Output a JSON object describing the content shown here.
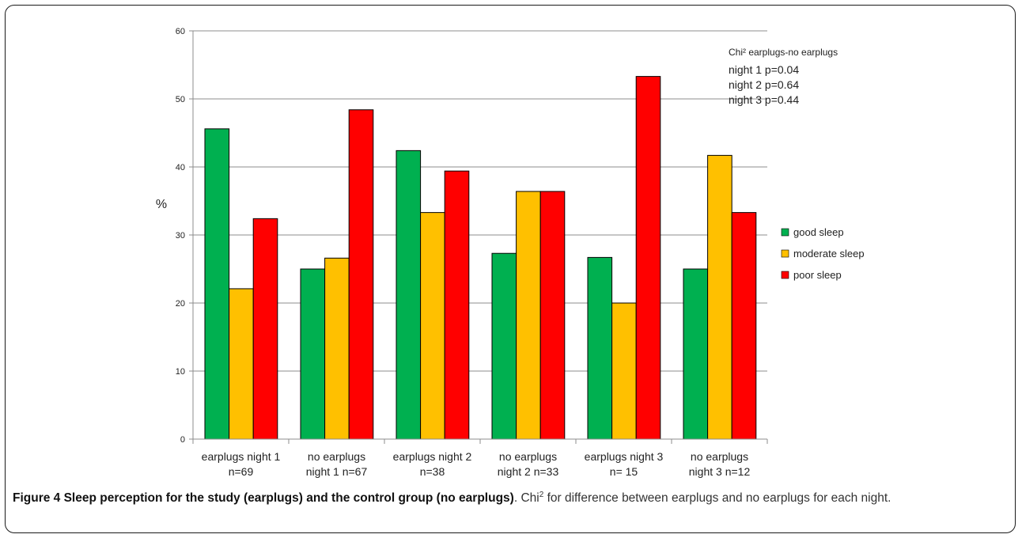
{
  "chart_data": {
    "type": "bar",
    "categories": [
      [
        "earplugs night 1",
        "n=69"
      ],
      [
        "no earplugs",
        "night 1 n=67"
      ],
      [
        "earplugs night 2",
        "n=38"
      ],
      [
        "no earplugs",
        "night 2 n=33"
      ],
      [
        "earplugs night 3",
        "n= 15"
      ],
      [
        "no earplugs",
        "night 3 n=12"
      ]
    ],
    "series": [
      {
        "name": "good sleep",
        "color": "#00b050",
        "values": [
          45.6,
          25.0,
          42.4,
          27.3,
          26.7,
          25.0
        ]
      },
      {
        "name": "moderate sleep",
        "color": "#ffc000",
        "values": [
          22.1,
          26.6,
          33.3,
          36.4,
          20.0,
          41.7
        ]
      },
      {
        "name": "poor sleep",
        "color": "#ff0000",
        "values": [
          32.4,
          48.4,
          39.4,
          36.4,
          53.3,
          33.3
        ]
      }
    ],
    "ylabel": "%",
    "ylim": [
      0,
      60
    ],
    "yticks": [
      0,
      10,
      20,
      30,
      40,
      50,
      60
    ],
    "grid": true,
    "legend_position": "right",
    "annotation": {
      "title": "Chi² earplugs-no earplugs",
      "lines": [
        "night 1 p=0.04",
        "night 2 p=0.64",
        "night 3 p=0.44"
      ]
    }
  },
  "caption": {
    "bold": "Figure 4 Sleep perception for the study (earplugs) and the control group (no earplugs)",
    "pre": ". Chi",
    "sup": "2",
    "rest": " for difference between earplugs and no earplugs for each night."
  }
}
